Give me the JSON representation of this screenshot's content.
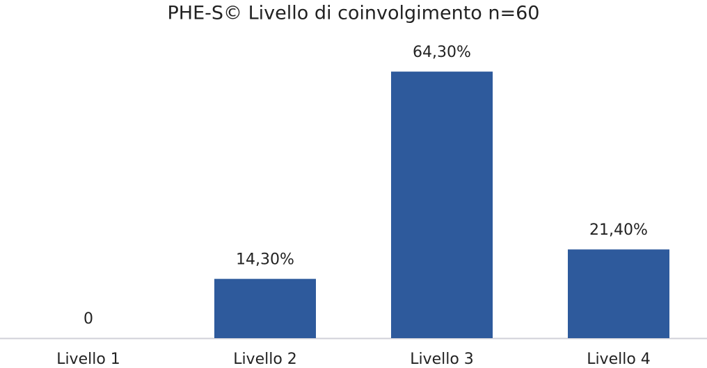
{
  "chart_data": {
    "type": "bar",
    "title": "PHE-S© Livello di coinvolgimento n=60",
    "categories": [
      "Livello 1",
      "Livello 2",
      "Livello 3",
      "Livello 4"
    ],
    "values": [
      0,
      14.3,
      64.3,
      21.4
    ],
    "value_labels": [
      "0",
      "14,30%",
      "64,30%",
      "21,40%"
    ],
    "color": "#2e5a9c"
  }
}
